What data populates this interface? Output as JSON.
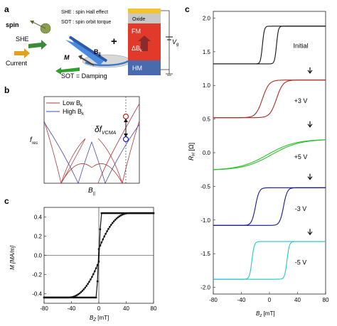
{
  "panel_letters": {
    "a": "a",
    "b": "b",
    "c1": "c",
    "c2": "c"
  },
  "panel_a": {
    "spin": "spin",
    "she": "SHE",
    "current": "Current",
    "m": "M",
    "b_par": "B",
    "b_par_sub": "||",
    "sot_damping": "SOT = Damping",
    "legend_she": "SHE : spin Hall effect",
    "legend_sot": "SOT : spin orbit torque",
    "plus": "+",
    "stack_oxide": "Oxide",
    "stack_fm": "FM",
    "stack_dbk": "ΔB",
    "stack_dbk_sub": "k",
    "stack_hm": "HM",
    "vg": "V",
    "vg_sub": "g"
  },
  "panel_b": {
    "legend_low": "Low B",
    "legend_low_sub": "k",
    "legend_high": "High B",
    "legend_high_sub": "k",
    "ylabel": "f",
    "ylabel_sub": "res",
    "xlabel": "B",
    "xlabel_sub": "||",
    "delta_label": "δf",
    "delta_sub": "VCMA",
    "colors": {
      "low": "#b03a3a",
      "high": "#4a4aa8"
    }
  },
  "chart_data": [
    {
      "type": "line",
      "panel": "c (left)",
      "xlabel": "B",
      "xlabel_sub": "Z",
      "xunit": " [mT]",
      "ylabel": "M [MA/m]",
      "xlim": [
        -80,
        80
      ],
      "ylim": [
        -0.5,
        0.5
      ],
      "xticks": [
        -80,
        -40,
        0,
        40,
        80
      ],
      "yticks": [
        0.4,
        0.2,
        0.0,
        -0.2,
        -0.4
      ],
      "ytick_labels": [
        "0.4",
        "0.2",
        "0.0",
        "-0.2",
        "-0.4"
      ],
      "series": [
        {
          "x": [
            -80,
            -40,
            -30,
            -20,
            -10,
            -5,
            -2,
            0,
            1,
            2,
            3
          ],
          "y": [
            -0.44,
            -0.44,
            -0.4,
            -0.3,
            -0.15,
            0.0,
            0.15,
            0.32,
            0.4,
            0.43,
            0.44
          ]
        },
        {
          "x": [
            80,
            40,
            30,
            20,
            10,
            5,
            2,
            0,
            -1,
            -2,
            -3
          ],
          "y": [
            0.44,
            0.44,
            0.38,
            0.28,
            0.14,
            0.0,
            -0.14,
            -0.32,
            -0.4,
            -0.43,
            -0.44
          ]
        }
      ],
      "color": "#111111"
    },
    {
      "type": "line",
      "panel": "c (right)",
      "xlabel": "B",
      "xlabel_sub": "z",
      "xunit": " [mT]",
      "ylabel": "R",
      "ylabel_sub": "H",
      "yunit": " [Ω]",
      "xlim": [
        -80,
        80
      ],
      "ylim": [
        -2.1,
        2.1
      ],
      "xticks": [
        -80,
        -40,
        0,
        40,
        80
      ],
      "yticks": [
        2.0,
        1.5,
        1.0,
        0.5,
        0.0,
        -0.5,
        -1.0,
        -1.5,
        -2.0
      ],
      "ytick_labels": [
        "2.0",
        "1.5",
        "1.0",
        "0.5",
        "0.0",
        "-0.5",
        "-1.0",
        "-1.5",
        "-2.0"
      ],
      "series": [
        {
          "name": "Initial",
          "color": "#111111",
          "low": 1.32,
          "high": 1.88,
          "hc": 10,
          "w": 4
        },
        {
          "name": "+3 V",
          "color": "#b02828",
          "low": 0.52,
          "high": 1.08,
          "hc": 10,
          "w": 14
        },
        {
          "name": "+5 V",
          "color": "#2ec12e",
          "low": -0.26,
          "high": 0.2,
          "hc": 3,
          "w": 60
        },
        {
          "name": "-3 V",
          "color": "#161689",
          "low": -1.08,
          "high": -0.52,
          "hc": 20,
          "w": 8
        },
        {
          "name": "-5 V",
          "color": "#26c6c6",
          "low": -1.88,
          "high": -1.32,
          "hc": 25,
          "w": 5
        }
      ]
    }
  ]
}
